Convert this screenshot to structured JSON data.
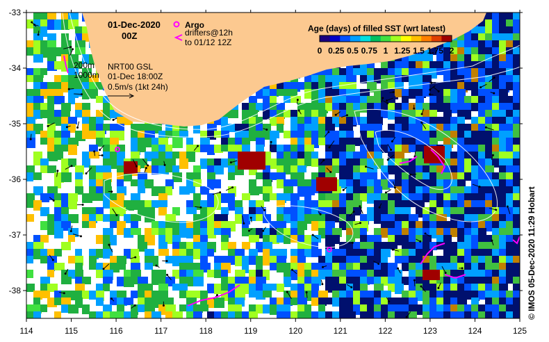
{
  "map": {
    "date": "01-Dec-2020",
    "hour": "00Z",
    "argo_label": "Argo",
    "drifters_line1": "drifters@12h",
    "drifters_line2": "to 01/12 12Z",
    "contour_200": "200m",
    "contour_1000": "1000m",
    "product": "NRT00 GSL",
    "product_time": "01-Dec 18:00Z",
    "vector_scale": "0.5m/s (1kt 24h)",
    "credit": "© IMOS 05-Dec-2020 11:29 Hobart"
  },
  "colorbar": {
    "title": "Age (days) of filled SST (wrt latest)",
    "tick_labels": [
      "0",
      "0.25",
      "0.5",
      "0.75",
      "1",
      "1.25",
      "1.5",
      "1.75",
      "2"
    ],
    "colors": [
      "#1a0080",
      "#0000c8",
      "#0050ff",
      "#00a0ff",
      "#00e0e0",
      "#00c060",
      "#40e040",
      "#a0ff20",
      "#ffff00",
      "#ffc000",
      "#ff8000",
      "#e04000",
      "#a00000"
    ]
  },
  "axes": {
    "x_ticks": [
      "114",
      "115",
      "116",
      "117",
      "118",
      "119",
      "120",
      "121",
      "122",
      "123",
      "124",
      "125"
    ],
    "y_ticks": [
      "-33",
      "-34",
      "-35",
      "-36",
      "-37",
      "-38"
    ]
  },
  "colors": {
    "land": "#fcc990",
    "argo": "#ff00ff",
    "drifter": "#ff00ff"
  }
}
